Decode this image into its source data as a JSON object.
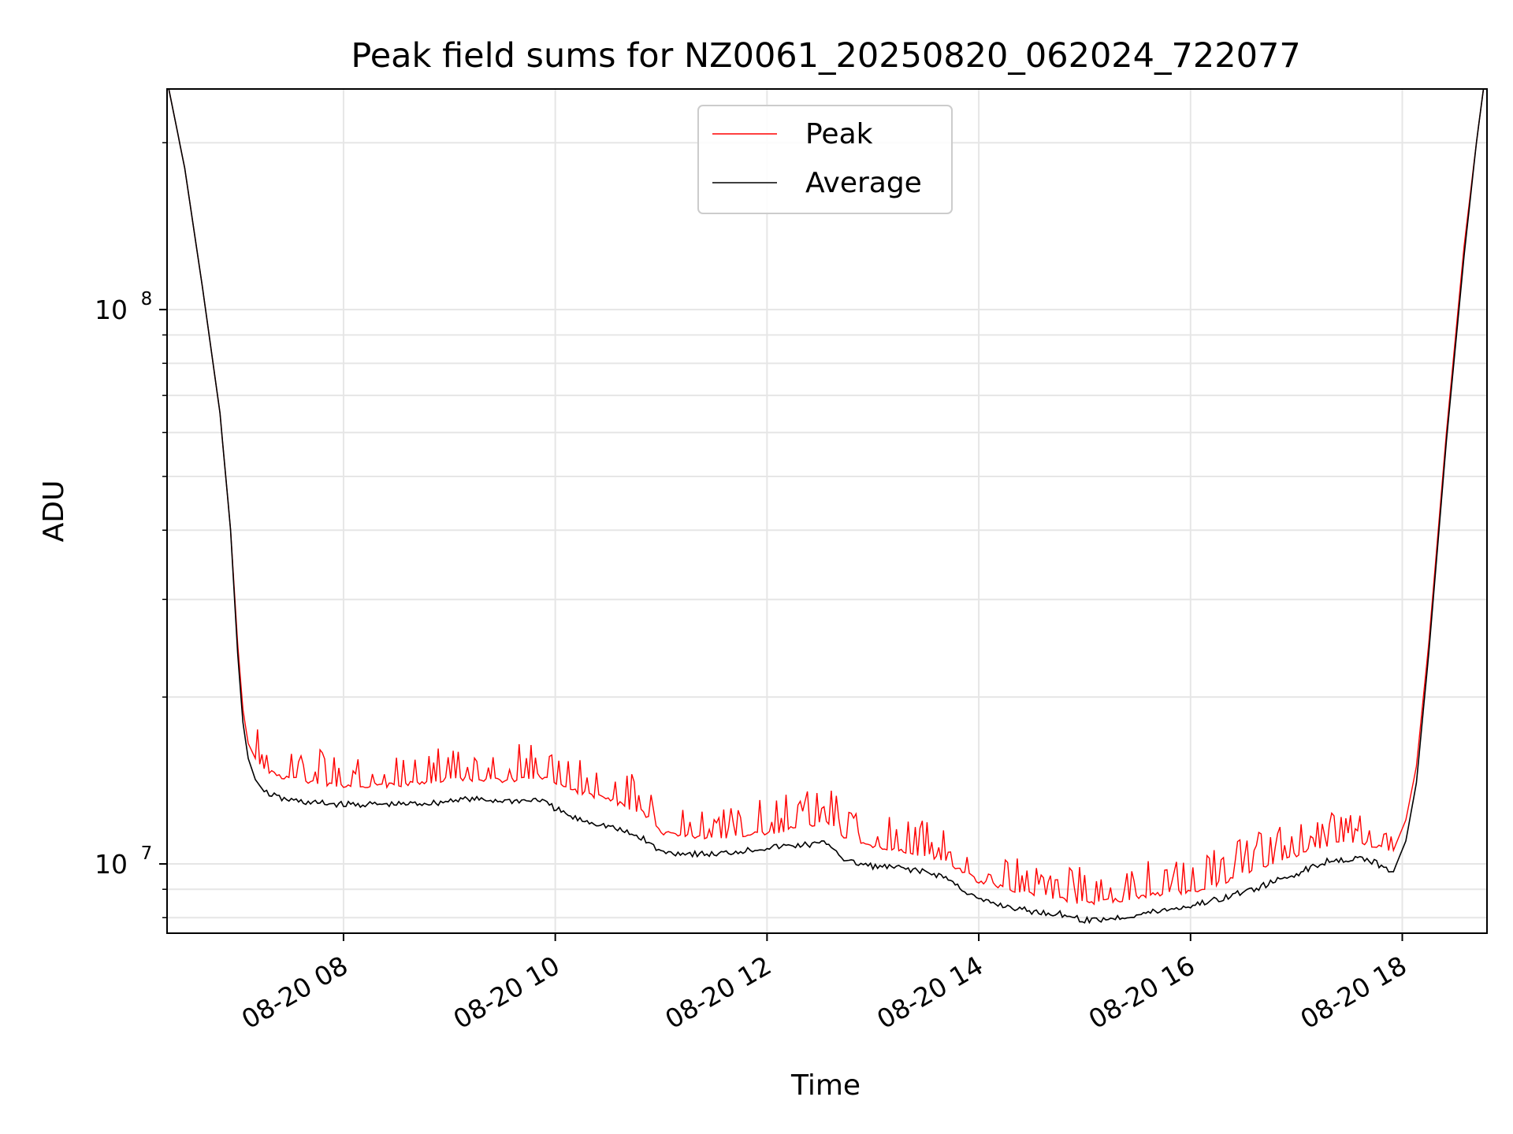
{
  "chart_data": {
    "type": "line",
    "title": "Peak field sums for NZ0061_20250820_062024_722077",
    "xlabel": "Time",
    "ylabel": "ADU",
    "y_scale": "log",
    "ylim": [
      7500000,
      250000000
    ],
    "xlim": [
      "2025-08-20 06:20",
      "2025-08-20 18:48"
    ],
    "x_ticks": [
      {
        "x": "2025-08-20 08:00",
        "label": "08-20 08"
      },
      {
        "x": "2025-08-20 10:00",
        "label": "08-20 10"
      },
      {
        "x": "2025-08-20 12:00",
        "label": "08-20 12"
      },
      {
        "x": "2025-08-20 14:00",
        "label": "08-20 14"
      },
      {
        "x": "2025-08-20 16:00",
        "label": "08-20 16"
      },
      {
        "x": "2025-08-20 18:00",
        "label": "08-20 18"
      }
    ],
    "y_ticks": [
      {
        "y": 10000000,
        "base": "10",
        "exp": "7"
      },
      {
        "y": 100000000,
        "base": "10",
        "exp": "8"
      }
    ],
    "grid": true,
    "legend_position": "top-center",
    "series": [
      {
        "name": "Peak",
        "color": "#ff0000",
        "x": [
          "2025-08-20 06:21",
          "2025-08-20 06:30",
          "2025-08-20 06:40",
          "2025-08-20 06:50",
          "2025-08-20 06:56",
          "2025-08-20 07:00",
          "2025-08-20 07:03",
          "2025-08-20 07:06",
          "2025-08-20 07:10",
          "2025-08-20 07:15",
          "2025-08-20 07:25",
          "2025-08-20 07:40",
          "2025-08-20 08:00",
          "2025-08-20 08:30",
          "2025-08-20 08:55",
          "2025-08-20 09:05",
          "2025-08-20 09:30",
          "2025-08-20 09:45",
          "2025-08-20 09:50",
          "2025-08-20 10:10",
          "2025-08-20 10:30",
          "2025-08-20 10:50",
          "2025-08-20 11:00",
          "2025-08-20 11:30",
          "2025-08-20 12:00",
          "2025-08-20 12:35",
          "2025-08-20 12:45",
          "2025-08-20 13:00",
          "2025-08-20 13:20",
          "2025-08-20 13:40",
          "2025-08-20 14:00",
          "2025-08-20 14:30",
          "2025-08-20 14:50",
          "2025-08-20 15:00",
          "2025-08-20 15:20",
          "2025-08-20 15:40",
          "2025-08-20 16:00",
          "2025-08-20 16:20",
          "2025-08-20 16:40",
          "2025-08-20 17:00",
          "2025-08-20 17:20",
          "2025-08-20 17:40",
          "2025-08-20 17:55",
          "2025-08-20 18:02",
          "2025-08-20 18:08",
          "2025-08-20 18:15",
          "2025-08-20 18:25",
          "2025-08-20 18:35",
          "2025-08-20 18:42",
          "2025-08-20 18:46"
        ],
        "values": [
          250000000,
          180000000,
          110000000,
          65000000,
          40000000,
          25000000,
          19000000,
          16500000,
          15500000,
          15000000,
          14500000,
          14200000,
          14000000,
          14000000,
          14300000,
          14400000,
          14300000,
          14400000,
          14600000,
          13700000,
          13200000,
          12500000,
          11500000,
          11200000,
          11500000,
          12000000,
          11200000,
          10800000,
          10600000,
          10300000,
          9400000,
          8900000,
          8700000,
          8600000,
          8700000,
          8900000,
          9000000,
          9400000,
          10000000,
          10500000,
          11000000,
          11000000,
          10600000,
          12000000,
          15000000,
          25000000,
          60000000,
          130000000,
          200000000,
          250000000
        ]
      },
      {
        "name": "Average",
        "color": "#000000",
        "x": [
          "2025-08-20 06:21",
          "2025-08-20 06:30",
          "2025-08-20 06:40",
          "2025-08-20 06:50",
          "2025-08-20 06:56",
          "2025-08-20 07:00",
          "2025-08-20 07:03",
          "2025-08-20 07:06",
          "2025-08-20 07:10",
          "2025-08-20 07:15",
          "2025-08-20 07:25",
          "2025-08-20 07:40",
          "2025-08-20 08:00",
          "2025-08-20 08:30",
          "2025-08-20 08:55",
          "2025-08-20 09:05",
          "2025-08-20 09:30",
          "2025-08-20 09:45",
          "2025-08-20 09:50",
          "2025-08-20 10:10",
          "2025-08-20 10:30",
          "2025-08-20 10:50",
          "2025-08-20 11:00",
          "2025-08-20 11:30",
          "2025-08-20 12:00",
          "2025-08-20 12:35",
          "2025-08-20 12:45",
          "2025-08-20 13:00",
          "2025-08-20 13:20",
          "2025-08-20 13:40",
          "2025-08-20 14:00",
          "2025-08-20 14:30",
          "2025-08-20 14:50",
          "2025-08-20 15:00",
          "2025-08-20 15:20",
          "2025-08-20 15:40",
          "2025-08-20 16:00",
          "2025-08-20 16:20",
          "2025-08-20 16:40",
          "2025-08-20 17:00",
          "2025-08-20 17:20",
          "2025-08-20 17:40",
          "2025-08-20 17:55",
          "2025-08-20 18:02",
          "2025-08-20 18:08",
          "2025-08-20 18:15",
          "2025-08-20 18:25",
          "2025-08-20 18:35",
          "2025-08-20 18:42",
          "2025-08-20 18:46"
        ],
        "values": [
          250000000,
          180000000,
          110000000,
          65000000,
          40000000,
          24000000,
          18000000,
          15500000,
          14200000,
          13500000,
          13100000,
          12900000,
          12800000,
          12800000,
          12900000,
          13100000,
          13000000,
          13000000,
          13100000,
          12100000,
          11700000,
          11100000,
          10500000,
          10400000,
          10700000,
          10900000,
          10100000,
          9900000,
          9800000,
          9500000,
          8600000,
          8200000,
          8100000,
          7900000,
          8000000,
          8200000,
          8400000,
          8700000,
          9100000,
          9600000,
          10200000,
          10200000,
          9700000,
          11000000,
          14000000,
          24000000,
          58000000,
          125000000,
          200000000,
          250000000
        ]
      }
    ]
  }
}
